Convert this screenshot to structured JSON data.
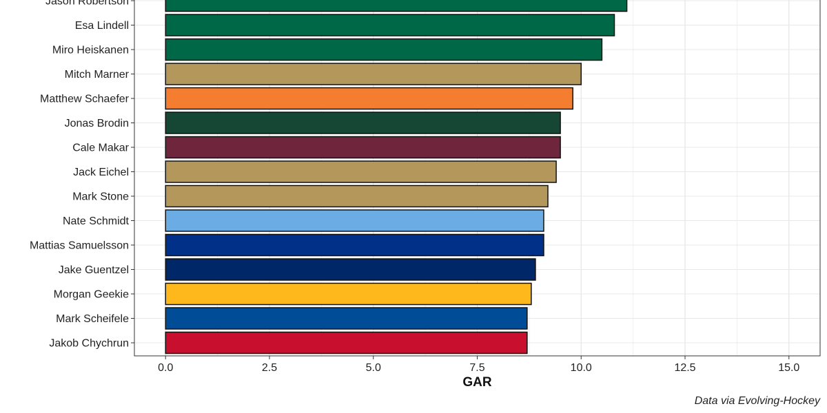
{
  "chart_data": {
    "type": "bar",
    "orientation": "horizontal",
    "xlabel": "GAR",
    "caption": "Data via Evolving-Hockey",
    "xlim": [
      -0.75,
      15.75
    ],
    "x_ticks": [
      0,
      2.5,
      5,
      7.5,
      10,
      12.5,
      15
    ],
    "x_tick_labels": [
      "0.0",
      "2.5",
      "5.0",
      "7.5",
      "10.0",
      "12.5",
      "15.0"
    ],
    "grid": true,
    "bars": [
      {
        "player": "Jason Robertson",
        "value": 11.1,
        "color": "#006847"
      },
      {
        "player": "Esa Lindell",
        "value": 10.8,
        "color": "#006847"
      },
      {
        "player": "Miro Heiskanen",
        "value": 10.5,
        "color": "#006847"
      },
      {
        "player": "Mitch Marner",
        "value": 10.0,
        "color": "#B4975A"
      },
      {
        "player": "Matthew Schaefer",
        "value": 9.8,
        "color": "#F47D30"
      },
      {
        "player": "Jonas Brodin",
        "value": 9.5,
        "color": "#154734"
      },
      {
        "player": "Cale Makar",
        "value": 9.5,
        "color": "#6F263D"
      },
      {
        "player": "Jack Eichel",
        "value": 9.4,
        "color": "#B4975A"
      },
      {
        "player": "Mark Stone",
        "value": 9.2,
        "color": "#B4975A"
      },
      {
        "player": "Nate Schmidt",
        "value": 9.1,
        "color": "#6CACE4"
      },
      {
        "player": "Mattias Samuelsson",
        "value": 9.1,
        "color": "#003087"
      },
      {
        "player": "Jake Guentzel",
        "value": 8.9,
        "color": "#002868"
      },
      {
        "player": "Morgan Geekie",
        "value": 8.8,
        "color": "#FFB81C"
      },
      {
        "player": "Mark Scheifele",
        "value": 8.7,
        "color": "#004C97"
      },
      {
        "player": "Jakob Chychrun",
        "value": 8.7,
        "color": "#C8102E"
      }
    ]
  }
}
